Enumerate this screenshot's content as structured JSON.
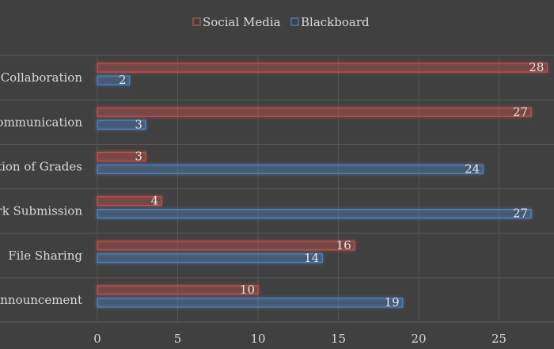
{
  "chart_data": {
    "type": "bar",
    "orientation": "horizontal",
    "title": "",
    "categories": [
      "Collaboration",
      "Communication",
      "Notification of Grades",
      "Work Submission",
      "File Sharing",
      "Announcement"
    ],
    "series": [
      {
        "name": "Social Media",
        "values": [
          28,
          27,
          3,
          4,
          16,
          10
        ],
        "color": "#c0504d"
      },
      {
        "name": "Blackboard",
        "values": [
          2,
          3,
          24,
          27,
          14,
          19
        ],
        "color": "#4f81bd"
      }
    ],
    "xlim": [
      0,
      28
    ],
    "xticks": [
      "0",
      "5",
      "10",
      "15",
      "20",
      "25"
    ],
    "grid": true,
    "legend_position": "top",
    "data_labels": true
  }
}
